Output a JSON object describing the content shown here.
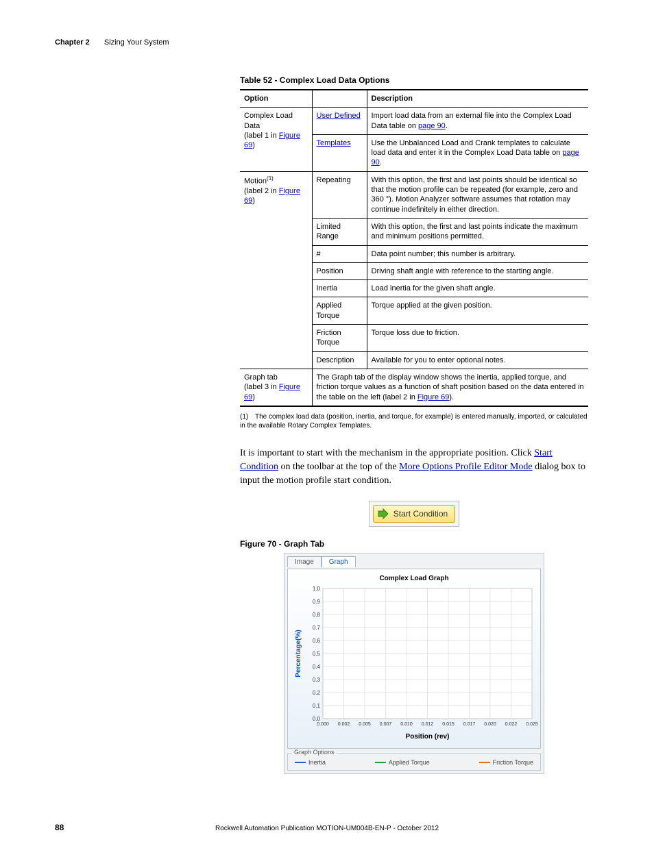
{
  "header": {
    "chapter": "Chapter 2",
    "title": "Sizing Your System"
  },
  "tableTitle": "Table 52 - Complex Load Data Options",
  "th": {
    "opt": "Option",
    "desc": "Description"
  },
  "r1": {
    "opt_a": "Complex Load Data",
    "opt_b": "(label 1 in ",
    "fig": "Figure 69",
    "opt_c": ")",
    "c1": "User Defined",
    "d1a": "Import load data from an external file into the Complex Load Data table on ",
    "d1link": "page 90",
    "d1b": ".",
    "c2": "Templates",
    "d2a": "Use the Unbalanced Load and Crank templates to calculate load data and enter it in the Complex Load Data table on ",
    "d2link": "page 90",
    "d2b": "."
  },
  "r2": {
    "opt_a": "Motion",
    "sup": "(1)",
    "opt_b": "(label 2 in ",
    "fig": "Figure 69",
    "opt_c": ")",
    "rows": [
      {
        "c": "Repeating",
        "d": "With this option, the first and last points should be identical so that the motion profile can be repeated (for example, zero and 360 °). Motion Analyzer software assumes that rotation may continue indefinitely in either direction."
      },
      {
        "c": "Limited Range",
        "d": "With this option, the first and last points indicate the maximum and minimum positions permitted."
      },
      {
        "c": "#",
        "d": "Data point number; this number is arbitrary."
      },
      {
        "c": "Position",
        "d": "Driving shaft angle with reference to the starting angle."
      },
      {
        "c": "Inertia",
        "d": "Load inertia for the given shaft angle."
      },
      {
        "c": "Applied Torque",
        "d": "Torque applied at the given position."
      },
      {
        "c": "Friction Torque",
        "d": "Torque loss due to friction."
      },
      {
        "c": "Description",
        "d": "Available for you to enter optional notes."
      }
    ]
  },
  "r3": {
    "opt_a": "Graph tab",
    "opt_b": "(label 3 in ",
    "fig": "Figure 69",
    "opt_c": ")",
    "d_a": "The Graph tab of the display window shows the inertia, applied torque, and friction torque values as a function of shaft position based on the data entered in the table on the left (label 2 in ",
    "d_link": "Figure 69",
    "d_b": ")."
  },
  "footnote": {
    "n": "(1)",
    "t": "The complex load data (position, inertia, and torque, for example) is entered manually, imported, or calculated in the available Rotary Complex Templates."
  },
  "para": {
    "a": "It is important to start with the mechanism in the appropriate position. Click ",
    "l1": "Start Condition",
    "b": " on the toolbar at the top of the ",
    "l2": "More Options Profile Editor Mode",
    "c": " dialog box to input the motion profile start condition."
  },
  "startBtn": "Start Condition",
  "figTitle": "Figure 70 - Graph Tab",
  "tabs": {
    "image": "Image",
    "graph": "Graph"
  },
  "chart": {
    "title": "Complex Load Graph",
    "ylabel": "Percentage(%)",
    "xlabel": "Position (rev)",
    "yticks": [
      "0.0",
      "0.1",
      "0.2",
      "0.3",
      "0.4",
      "0.5",
      "0.6",
      "0.7",
      "0.8",
      "0.9",
      "1.0"
    ],
    "xticks": [
      "0.000",
      "0.002",
      "0.005",
      "0.007",
      "0.010",
      "0.012",
      "0.015",
      "0.017",
      "0.020",
      "0.022",
      "0.025"
    ],
    "grid_color": "#c8c8c8",
    "bg_top": "#ffffff",
    "bg_bot": "#e8f0f8"
  },
  "graphOptions": {
    "label": "Graph Options",
    "items": [
      {
        "name": "Inertia",
        "color": "#2060c0"
      },
      {
        "name": "Applied Torque",
        "color": "#20a040"
      },
      {
        "name": "Friction Torque",
        "color": "#e07020"
      }
    ]
  },
  "pageNum": "88",
  "pub": "Rockwell Automation Publication MOTION-UM004B-EN-P - October 2012"
}
